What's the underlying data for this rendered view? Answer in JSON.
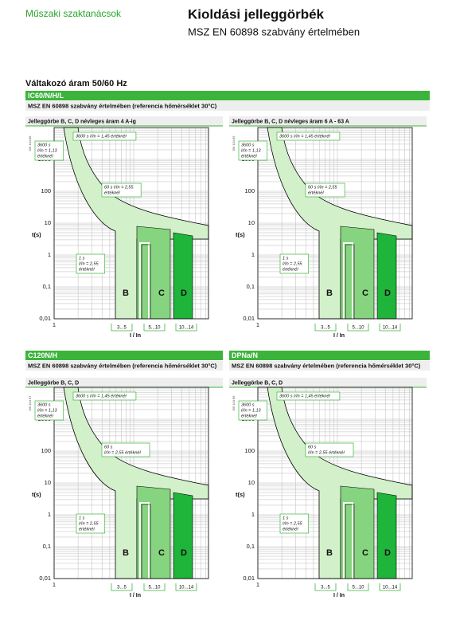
{
  "header": {
    "brand": "Műszaki szaktanácsok",
    "title": "Kioldási jelleggörbék",
    "subtitle": "MSZ EN 60898 szabvány értelmében"
  },
  "section_title": "Váltakozó áram 50/60 Hz",
  "sections": [
    {
      "label": "IC60/N/H/L",
      "standard": "MSZ EN 60898 szabvány értelmében (referencia hőmérséklet 30°C)",
      "panels": [
        {
          "heading": "Jelleggörbe B, C, D névleges áram 4 A-ig",
          "code": "DB 104 88",
          "y_label": "t(s)",
          "y_ticks": [
            "1000",
            "100",
            "10",
            "1",
            "0,1",
            "0,01"
          ],
          "x_tick": "1",
          "x_label": "I / In",
          "ranges": [
            "3...5",
            "5...10",
            "10...14"
          ],
          "letters": [
            "B",
            "C",
            "D"
          ],
          "notes": [
            [
              "3600 s I/In = 1,45 értéknél"
            ],
            [
              "3600 s",
              "I/In = 1,13",
              "értéknél"
            ],
            [
              "60 s I/In = 2,55",
              "értéknél"
            ],
            [
              "1 s",
              "I/In = 2,55",
              "értéknél"
            ]
          ]
        },
        {
          "heading": "Jelleggörbe B, C, D névleges áram 6 A - 63 A",
          "code": "DB 104 89",
          "y_label": "t(s)",
          "y_ticks": [
            "1000",
            "100",
            "10",
            "1",
            "0,1",
            "0,01"
          ],
          "x_tick": "1",
          "x_label": "I / In",
          "ranges": [
            "3...5",
            "5...10",
            "10...14"
          ],
          "letters": [
            "B",
            "C",
            "D"
          ],
          "notes": [
            [
              "3600 s I/In = 1,45 értéknél"
            ],
            [
              "3600 s",
              "I/In = 1,13",
              "értéknél"
            ],
            [
              "60 s I/In = 2,55",
              "értéknél"
            ],
            [
              "1 s",
              "I/In = 2,55",
              "értéknél"
            ]
          ]
        }
      ]
    },
    {
      "label": "C120N/H",
      "standard": "MSZ EN 60898 szabvány értelmében (referencia hőmérséklet 30°C)",
      "panels": [
        {
          "heading": "Jelleggörbe B, C, D",
          "code": "DB 104 87",
          "y_label": "t(s)",
          "y_ticks": [
            "1000",
            "100",
            "10",
            "1",
            "0,1",
            "0,01"
          ],
          "x_tick": "1",
          "x_label": "I / In",
          "ranges": [
            "3...5",
            "5...10",
            "10...14"
          ],
          "letters": [
            "B",
            "C",
            "D"
          ],
          "notes": [
            [
              "3600 s I/In = 1,45 értéknél"
            ],
            [
              "3600 s",
              "I/In = 1,13",
              "értéknél"
            ],
            [
              "60 s",
              "I/In = 2,55 értéknél"
            ],
            [
              "1 s",
              "I/In = 2,55",
              "értéknél"
            ]
          ]
        }
      ]
    },
    {
      "label": "DPNa/N",
      "standard": "MSZ EN 60898 szabvány értelmében (referencia hőmérséklet 30°C)",
      "panels": [
        {
          "heading": "Jelleggörbe B, C, D",
          "code": "DB 104 86",
          "y_label": "t(s)",
          "y_ticks": [
            "1000",
            "100",
            "10",
            "1",
            "0,1",
            "0,01"
          ],
          "x_tick": "1",
          "x_label": "I / In",
          "ranges": [
            "3...5",
            "5...10",
            "10...14"
          ],
          "letters": [
            "B",
            "C",
            "D"
          ],
          "notes": [
            [
              "3600 s I/In = 1,45 értéknél"
            ],
            [
              "3600 s",
              "I/In = 1,13",
              "értéknél"
            ],
            [
              "60 s",
              "I/In = 2,55 értéknél"
            ],
            [
              "1 s",
              "I/In = 2,55",
              "értéknél"
            ]
          ]
        }
      ]
    }
  ]
}
